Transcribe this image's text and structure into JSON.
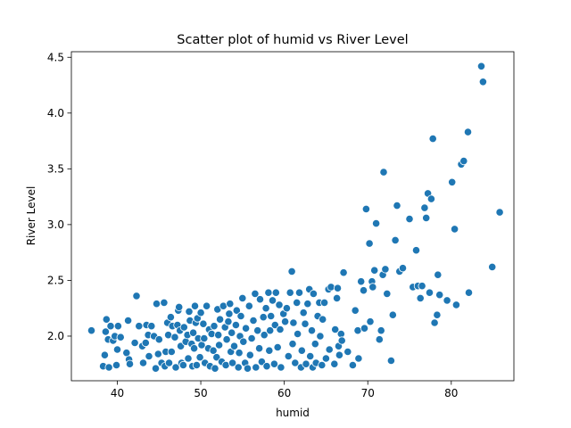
{
  "chart_data": {
    "type": "scatter",
    "title": "Scatter plot of humid vs River Level",
    "xlabel": "humid",
    "ylabel": "River Level",
    "xlim": [
      34.5,
      87.5
    ],
    "ylim": [
      1.6,
      4.55
    ],
    "xticks": [
      40,
      50,
      60,
      70,
      80
    ],
    "xtick_labels": [
      "40",
      "50",
      "60",
      "70",
      "80"
    ],
    "yticks": [
      2.0,
      2.5,
      3.0,
      3.5,
      4.0,
      4.5
    ],
    "ytick_labels": [
      "2.0",
      "2.5",
      "3.0",
      "3.5",
      "4.0",
      "4.5"
    ],
    "grid": false,
    "marker_color": "#1f77b4",
    "points": [
      [
        36.9,
        2.05
      ],
      [
        38.3,
        1.73
      ],
      [
        38.5,
        1.83
      ],
      [
        38.6,
        2.04
      ],
      [
        38.7,
        2.15
      ],
      [
        38.9,
        1.97
      ],
      [
        39.0,
        1.72
      ],
      [
        39.2,
        2.09
      ],
      [
        39.5,
        1.96
      ],
      [
        39.7,
        2.0
      ],
      [
        39.9,
        1.74
      ],
      [
        40.0,
        1.88
      ],
      [
        40.1,
        2.09
      ],
      [
        40.4,
        1.99
      ],
      [
        41.1,
        1.85
      ],
      [
        41.3,
        2.14
      ],
      [
        41.4,
        1.79
      ],
      [
        41.5,
        1.75
      ],
      [
        42.1,
        1.94
      ],
      [
        42.3,
        2.36
      ],
      [
        42.6,
        2.09
      ],
      [
        43.0,
        1.91
      ],
      [
        43.1,
        1.76
      ],
      [
        43.4,
        1.94
      ],
      [
        43.5,
        2.1
      ],
      [
        43.7,
        2.01
      ],
      [
        43.8,
        1.82
      ],
      [
        44.1,
        2.09
      ],
      [
        44.4,
        2.0
      ],
      [
        44.6,
        1.71
      ],
      [
        44.7,
        2.29
      ],
      [
        44.9,
        1.84
      ],
      [
        45.0,
        1.97
      ],
      [
        45.3,
        1.76
      ],
      [
        45.6,
        2.3
      ],
      [
        45.7,
        1.73
      ],
      [
        45.8,
        1.86
      ],
      [
        46.0,
        2.12
      ],
      [
        46.1,
        2.01
      ],
      [
        46.2,
        1.76
      ],
      [
        46.4,
        2.17
      ],
      [
        46.5,
        1.86
      ],
      [
        46.6,
        2.09
      ],
      [
        46.9,
        1.99
      ],
      [
        47.0,
        1.72
      ],
      [
        47.2,
        2.1
      ],
      [
        47.3,
        2.23
      ],
      [
        47.4,
        2.26
      ],
      [
        47.5,
        2.05
      ],
      [
        47.6,
        1.91
      ],
      [
        47.7,
        1.76
      ],
      [
        47.9,
        1.74
      ],
      [
        48.0,
        2.08
      ],
      [
        48.2,
        1.95
      ],
      [
        48.4,
        2.01
      ],
      [
        48.5,
        1.8
      ],
      [
        48.6,
        2.22
      ],
      [
        48.7,
        2.14
      ],
      [
        48.9,
        1.93
      ],
      [
        49.0,
        1.73
      ],
      [
        49.1,
        2.03
      ],
      [
        49.2,
        1.89
      ],
      [
        49.3,
        2.27
      ],
      [
        49.4,
        2.12
      ],
      [
        49.5,
        1.74
      ],
      [
        49.6,
        2.16
      ],
      [
        49.7,
        1.98
      ],
      [
        49.9,
        1.81
      ],
      [
        50.0,
        2.21
      ],
      [
        50.1,
        1.92
      ],
      [
        50.3,
        2.11
      ],
      [
        50.4,
        1.98
      ],
      [
        50.5,
        1.76
      ],
      [
        50.7,
        2.27
      ],
      [
        50.9,
        1.89
      ],
      [
        51.0,
        2.06
      ],
      [
        51.1,
        1.73
      ],
      [
        51.3,
        2.02
      ],
      [
        51.5,
        1.87
      ],
      [
        51.6,
        2.09
      ],
      [
        51.7,
        1.71
      ],
      [
        51.9,
        1.81
      ],
      [
        52.0,
        2.24
      ],
      [
        52.1,
        2.01
      ],
      [
        52.2,
        1.92
      ],
      [
        52.3,
        2.15
      ],
      [
        52.5,
        1.77
      ],
      [
        52.7,
        2.27
      ],
      [
        52.9,
        2.08
      ],
      [
        53.0,
        1.74
      ],
      [
        53.1,
        1.97
      ],
      [
        53.3,
        2.13
      ],
      [
        53.4,
        2.2
      ],
      [
        53.5,
        2.29
      ],
      [
        53.6,
        1.86
      ],
      [
        53.7,
        2.03
      ],
      [
        53.8,
        1.76
      ],
      [
        54.0,
        1.91
      ],
      [
        54.2,
        2.1
      ],
      [
        54.3,
        2.23
      ],
      [
        54.5,
        1.72
      ],
      [
        54.6,
        1.85
      ],
      [
        54.7,
        2.0
      ],
      [
        54.8,
        2.18
      ],
      [
        55.0,
        2.34
      ],
      [
        55.1,
        1.95
      ],
      [
        55.3,
        1.76
      ],
      [
        55.4,
        2.07
      ],
      [
        55.6,
        1.71
      ],
      [
        55.8,
        2.27
      ],
      [
        55.9,
        1.83
      ],
      [
        56.1,
        1.98
      ],
      [
        56.3,
        2.14
      ],
      [
        56.5,
        2.38
      ],
      [
        56.6,
        1.72
      ],
      [
        56.8,
        2.05
      ],
      [
        57.0,
        1.89
      ],
      [
        57.1,
        2.33
      ],
      [
        57.3,
        1.77
      ],
      [
        57.5,
        2.17
      ],
      [
        57.6,
        2.01
      ],
      [
        57.8,
        2.25
      ],
      [
        57.9,
        1.73
      ],
      [
        58.1,
        2.39
      ],
      [
        58.2,
        1.87
      ],
      [
        58.3,
        2.05
      ],
      [
        58.4,
        2.18
      ],
      [
        58.6,
        2.32
      ],
      [
        58.8,
        1.75
      ],
      [
        58.9,
        2.1
      ],
      [
        59.0,
        2.39
      ],
      [
        59.2,
        1.9
      ],
      [
        59.4,
        2.28
      ],
      [
        59.5,
        2.06
      ],
      [
        59.6,
        1.72
      ],
      [
        59.9,
        2.2
      ],
      [
        60.1,
        2.13
      ],
      [
        60.3,
        2.25
      ],
      [
        60.5,
        1.82
      ],
      [
        60.7,
        2.39
      ],
      [
        60.9,
        2.58
      ],
      [
        61.0,
        1.93
      ],
      [
        61.1,
        2.12
      ],
      [
        61.3,
        1.76
      ],
      [
        61.5,
        2.3
      ],
      [
        61.6,
        2.02
      ],
      [
        61.8,
        2.39
      ],
      [
        62.0,
        1.72
      ],
      [
        62.1,
        1.87
      ],
      [
        62.3,
        2.21
      ],
      [
        62.5,
        2.11
      ],
      [
        62.6,
        1.75
      ],
      [
        62.8,
        2.29
      ],
      [
        63.0,
        2.42
      ],
      [
        63.1,
        1.82
      ],
      [
        63.3,
        2.05
      ],
      [
        63.4,
        1.72
      ],
      [
        63.5,
        2.38
      ],
      [
        63.7,
        1.93
      ],
      [
        63.8,
        1.76
      ],
      [
        64.0,
        2.18
      ],
      [
        64.2,
        2.3
      ],
      [
        64.3,
        2.0
      ],
      [
        64.5,
        1.74
      ],
      [
        64.6,
        2.15
      ],
      [
        64.8,
        2.3
      ],
      [
        65.0,
        1.8
      ],
      [
        65.3,
        2.42
      ],
      [
        65.4,
        1.88
      ],
      [
        65.6,
        2.44
      ],
      [
        66.0,
        1.75
      ],
      [
        66.1,
        2.06
      ],
      [
        66.3,
        2.34
      ],
      [
        66.4,
        2.43
      ],
      [
        66.5,
        1.91
      ],
      [
        66.6,
        1.83
      ],
      [
        66.8,
        2.02
      ],
      [
        66.9,
        1.96
      ],
      [
        67.1,
        2.57
      ],
      [
        67.6,
        1.86
      ],
      [
        68.2,
        1.74
      ],
      [
        68.5,
        2.23
      ],
      [
        68.8,
        2.05
      ],
      [
        68.9,
        1.8
      ],
      [
        69.2,
        2.49
      ],
      [
        69.5,
        2.41
      ],
      [
        69.6,
        2.07
      ],
      [
        69.8,
        3.14
      ],
      [
        70.2,
        2.83
      ],
      [
        70.3,
        2.13
      ],
      [
        70.5,
        2.49
      ],
      [
        70.6,
        2.44
      ],
      [
        70.8,
        2.59
      ],
      [
        71.0,
        3.01
      ],
      [
        71.4,
        1.97
      ],
      [
        71.6,
        2.05
      ],
      [
        71.8,
        2.55
      ],
      [
        71.9,
        3.47
      ],
      [
        72.1,
        2.6
      ],
      [
        72.3,
        2.38
      ],
      [
        72.8,
        1.78
      ],
      [
        73.0,
        2.19
      ],
      [
        73.3,
        2.86
      ],
      [
        73.5,
        3.17
      ],
      [
        73.8,
        2.58
      ],
      [
        74.2,
        2.61
      ],
      [
        75.0,
        3.05
      ],
      [
        75.4,
        2.44
      ],
      [
        75.8,
        2.77
      ],
      [
        76.0,
        2.45
      ],
      [
        76.3,
        2.34
      ],
      [
        76.5,
        2.45
      ],
      [
        76.8,
        3.15
      ],
      [
        77.0,
        3.06
      ],
      [
        77.2,
        3.28
      ],
      [
        77.4,
        2.39
      ],
      [
        77.6,
        3.23
      ],
      [
        77.8,
        3.77
      ],
      [
        78.0,
        2.12
      ],
      [
        78.3,
        2.19
      ],
      [
        78.4,
        2.55
      ],
      [
        78.6,
        2.37
      ],
      [
        79.5,
        2.32
      ],
      [
        80.1,
        3.38
      ],
      [
        80.4,
        2.96
      ],
      [
        80.6,
        2.28
      ],
      [
        81.2,
        3.54
      ],
      [
        81.5,
        3.57
      ],
      [
        82.0,
        3.83
      ],
      [
        82.1,
        2.39
      ],
      [
        83.6,
        4.42
      ],
      [
        83.8,
        4.28
      ],
      [
        84.9,
        2.62
      ],
      [
        85.8,
        3.11
      ]
    ]
  }
}
